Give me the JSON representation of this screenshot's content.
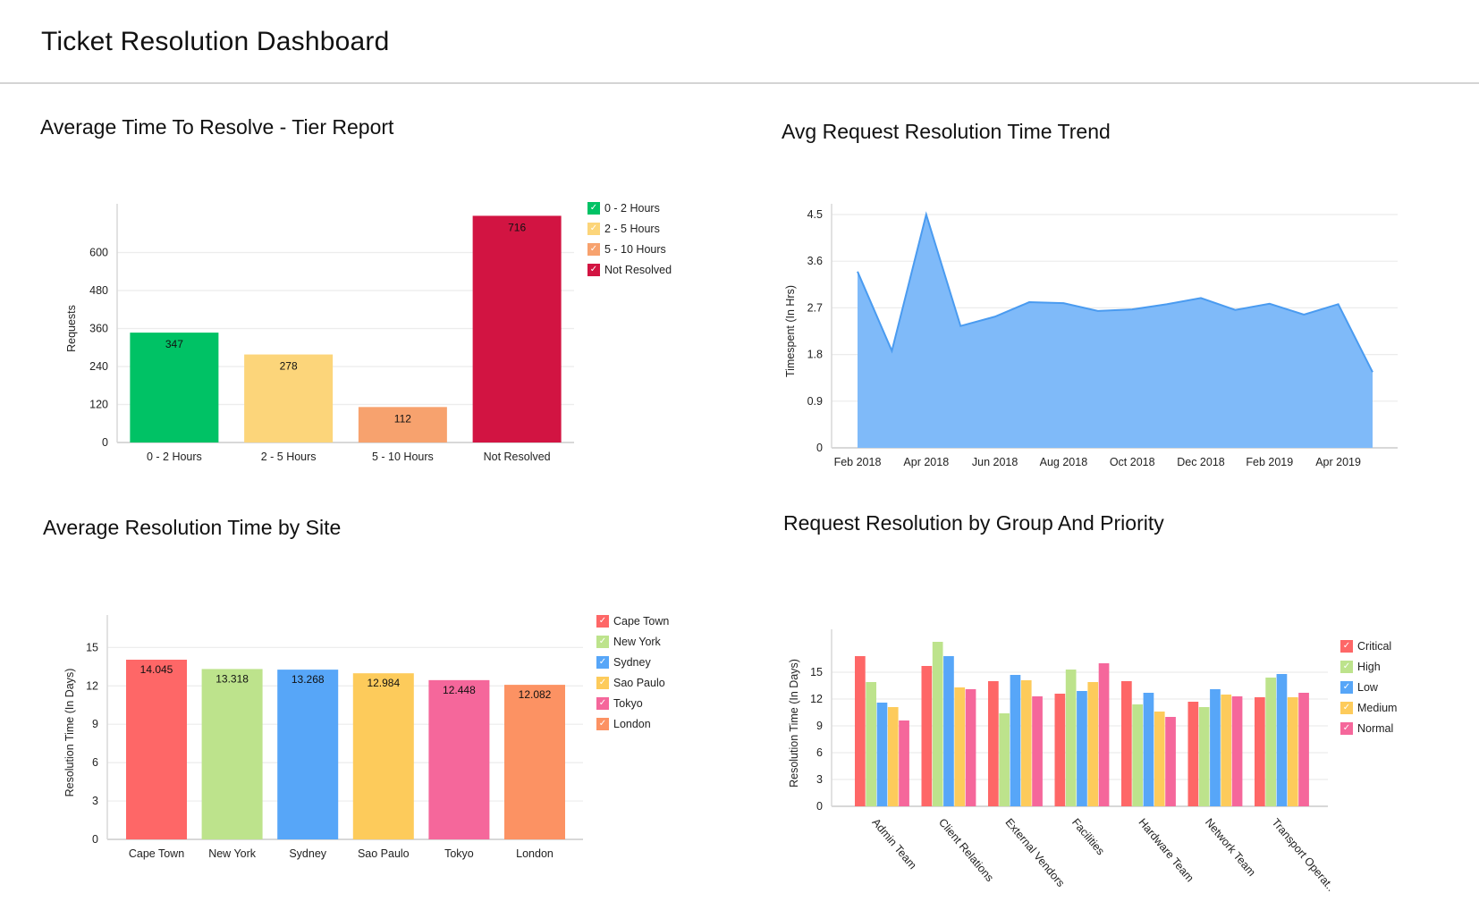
{
  "page": {
    "title": "Ticket Resolution Dashboard"
  },
  "chart_data": [
    {
      "id": "tier",
      "type": "bar",
      "title": "Average Time To Resolve - Tier Report",
      "xlabel": "",
      "ylabel": "Requests",
      "ylim": [
        0,
        720
      ],
      "yticks": [
        0,
        120,
        240,
        360,
        480,
        600
      ],
      "categories": [
        "0 - 2 Hours",
        "2 - 5 Hours",
        "5 - 10 Hours",
        "Not Resolved"
      ],
      "values": [
        347,
        278,
        112,
        716
      ],
      "value_labels": [
        "347",
        "278",
        "112",
        "716"
      ],
      "colors": [
        "#00c265",
        "#fcd57a",
        "#f7a26e",
        "#d21442"
      ],
      "legend": [
        "0 - 2 Hours",
        "2 - 5 Hours",
        "5 - 10 Hours",
        "Not Resolved"
      ],
      "legend_position": "top-right",
      "grid": true
    },
    {
      "id": "trend",
      "type": "area",
      "title": "Avg Request Resolution Time Trend",
      "xlabel": "",
      "ylabel": "Timespent (In Hrs)",
      "ylim": [
        0,
        4.5
      ],
      "yticks": [
        "0",
        "0.9",
        "1.8",
        "2.7",
        "3.6",
        "4.5"
      ],
      "x": [
        "Feb 2018",
        "Mar 2018",
        "Apr 2018",
        "May 2018",
        "Jun 2018",
        "Jul 2018",
        "Aug 2018",
        "Sep 2018",
        "Oct 2018",
        "Nov 2018",
        "Dec 2018",
        "Jan 2019",
        "Feb 2019",
        "Mar 2019",
        "Apr 2019",
        "May 2019"
      ],
      "xtick_labels": [
        "Feb 2018",
        "Apr 2018",
        "Jun 2018",
        "Aug 2018",
        "Oct 2018",
        "Dec 2018",
        "Feb 2019",
        "Apr 2019"
      ],
      "values": [
        3.4,
        1.87,
        4.5,
        2.35,
        2.53,
        2.81,
        2.79,
        2.64,
        2.67,
        2.77,
        2.89,
        2.66,
        2.78,
        2.57,
        2.77,
        1.46
      ],
      "color": "#5aa7f5",
      "grid": true
    },
    {
      "id": "site",
      "type": "bar",
      "title": "Average Resolution Time by Site",
      "xlabel": "",
      "ylabel": "Resolution Time (In Days)",
      "ylim": [
        0,
        16.7
      ],
      "yticks": [
        0,
        3,
        6,
        9,
        12,
        15
      ],
      "categories": [
        "Cape Town",
        "New York",
        "Sydney",
        "Sao Paulo",
        "Tokyo",
        "London"
      ],
      "values": [
        14.045,
        13.318,
        13.268,
        12.984,
        12.448,
        12.082
      ],
      "value_labels": [
        "14.045",
        "13.318",
        "13.268",
        "12.984",
        "12.448",
        "12.082"
      ],
      "colors": [
        "#fe6767",
        "#bde38c",
        "#57a6f8",
        "#fdcb5b",
        "#f5679b",
        "#fc9263"
      ],
      "legend": [
        "Cape Town",
        "New York",
        "Sydney",
        "Sao Paulo",
        "Tokyo",
        "London"
      ],
      "legend_position": "top-right",
      "grid": true
    },
    {
      "id": "group",
      "type": "bar",
      "title": "Request Resolution by Group And Priority",
      "xlabel": "",
      "ylabel": "Resolution Time (In Days)",
      "ylim": [
        0,
        18.6
      ],
      "yticks": [
        0,
        3,
        6,
        9,
        12,
        15
      ],
      "categories": [
        "Admin Team",
        "Client Relations",
        "External Vendors",
        "Facilities",
        "Hardware Team",
        "Network Team",
        "Transport Operat.."
      ],
      "series": [
        {
          "name": "Critical",
          "color": "#fe6767",
          "values": [
            16.8,
            15.7,
            14.0,
            12.6,
            14.0,
            11.7,
            12.2
          ]
        },
        {
          "name": "High",
          "color": "#bde38c",
          "values": [
            13.9,
            18.4,
            10.4,
            15.3,
            11.4,
            11.1,
            14.4
          ]
        },
        {
          "name": "Low",
          "color": "#57a6f8",
          "values": [
            11.6,
            16.8,
            14.7,
            12.9,
            12.7,
            13.1,
            14.8
          ]
        },
        {
          "name": "Medium",
          "color": "#fdcb5b",
          "values": [
            11.1,
            13.3,
            14.1,
            13.9,
            10.6,
            12.5,
            12.2
          ]
        },
        {
          "name": "Normal",
          "color": "#f5679b",
          "values": [
            9.6,
            13.1,
            12.3,
            16.0,
            10.0,
            12.3,
            12.7
          ]
        }
      ],
      "legend_position": "top-right",
      "grid": true
    }
  ],
  "legend_check": "✓"
}
